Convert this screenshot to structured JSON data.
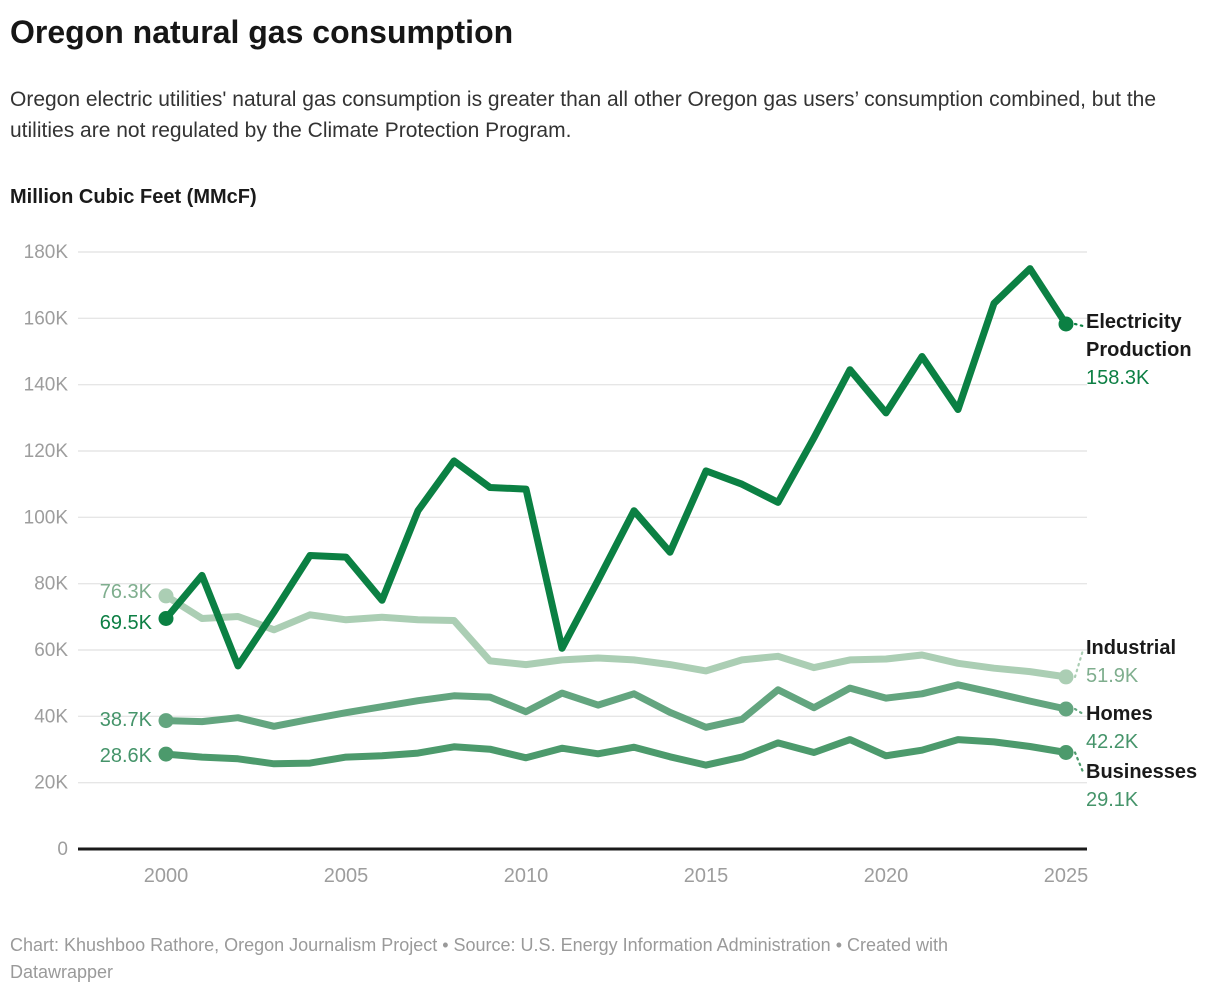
{
  "chart_data": {
    "type": "line",
    "title": "Oregon natural gas consumption",
    "subtitle": "Oregon electric utilities' natural gas consumption is greater than all other Oregon gas users’ consumption combined, but the utilities are not regulated by the Climate Protection Program.",
    "ylabel": "Million Cubic Feet (MMcF)",
    "xlabel": "",
    "grid": "horizontal",
    "legend_position": "direct-labels-right",
    "ylim_thousands": [
      0,
      180
    ],
    "x": [
      2000,
      2001,
      2002,
      2003,
      2004,
      2005,
      2006,
      2007,
      2008,
      2009,
      2010,
      2011,
      2012,
      2013,
      2014,
      2015,
      2016,
      2017,
      2018,
      2019,
      2020,
      2021,
      2022,
      2023,
      2024,
      2025
    ],
    "x_ticks": [
      2000,
      2005,
      2010,
      2015,
      2020,
      2025
    ],
    "y_ticks": [
      {
        "value": 0,
        "label": "0"
      },
      {
        "value": 20,
        "label": "20K"
      },
      {
        "value": 40,
        "label": "40K"
      },
      {
        "value": 60,
        "label": "60K"
      },
      {
        "value": 80,
        "label": "80K"
      },
      {
        "value": 100,
        "label": "100K"
      },
      {
        "value": 120,
        "label": "120K"
      },
      {
        "value": 140,
        "label": "140K"
      },
      {
        "value": 160,
        "label": "160K"
      },
      {
        "value": 180,
        "label": "180K"
      }
    ],
    "series": [
      {
        "name": "Electricity Production",
        "color": "#0b8043",
        "label_color": "#0d7f44",
        "start_label": "69.5K",
        "end_label": "158.3K",
        "values_thousands": [
          69.5,
          82.5,
          55.2,
          71.5,
          88.5,
          88,
          75,
          102,
          117,
          109,
          108.5,
          60.5,
          81,
          102,
          89.5,
          114,
          110,
          104.5,
          124,
          144.5,
          131.5,
          148.5,
          132.5,
          164.5,
          175,
          158.3
        ]
      },
      {
        "name": "Industrial",
        "color": "#abceb4",
        "label_color": "#7fae8e",
        "start_label": "76.3K",
        "end_label": "51.9K",
        "values_thousands": [
          76.3,
          69.5,
          70.1,
          66.1,
          70.6,
          69.1,
          69.9,
          69.1,
          68.9,
          56.7,
          55.6,
          57,
          57.6,
          57,
          55.6,
          53.7,
          57,
          58.1,
          54.7,
          57,
          57.3,
          58.5,
          56,
          54.5,
          53.5,
          51.9
        ]
      },
      {
        "name": "Homes",
        "color": "#63a57f",
        "label_color": "#45946a",
        "start_label": "38.7K",
        "end_label": "42.2K",
        "values_thousands": [
          38.7,
          38.4,
          39.6,
          37,
          39.1,
          41.1,
          42.9,
          44.7,
          46.2,
          45.8,
          41.4,
          47,
          43.4,
          46.8,
          41.2,
          36.7,
          39.1,
          48,
          42.6,
          48.5,
          45.5,
          46.8,
          49.5,
          47.1,
          44.6,
          42.2
        ]
      },
      {
        "name": "Businesses",
        "color": "#4c9a6c",
        "label_color": "#45946a",
        "start_label": "28.6K",
        "end_label": "29.1K",
        "values_thousands": [
          28.6,
          27.7,
          27.2,
          25.7,
          25.9,
          27.7,
          28.1,
          28.9,
          30.8,
          30.1,
          27.5,
          30.4,
          28.7,
          30.7,
          27.8,
          25.3,
          27.7,
          32,
          29.1,
          33,
          28.1,
          29.8,
          33,
          32.3,
          30.9,
          29.1
        ]
      }
    ]
  },
  "footer": {
    "line1": "Chart: Khushboo Rathore, Oregon Journalism Project • Source: U.S. Energy Information Administration • Created with",
    "line2": "Datawrapper"
  }
}
